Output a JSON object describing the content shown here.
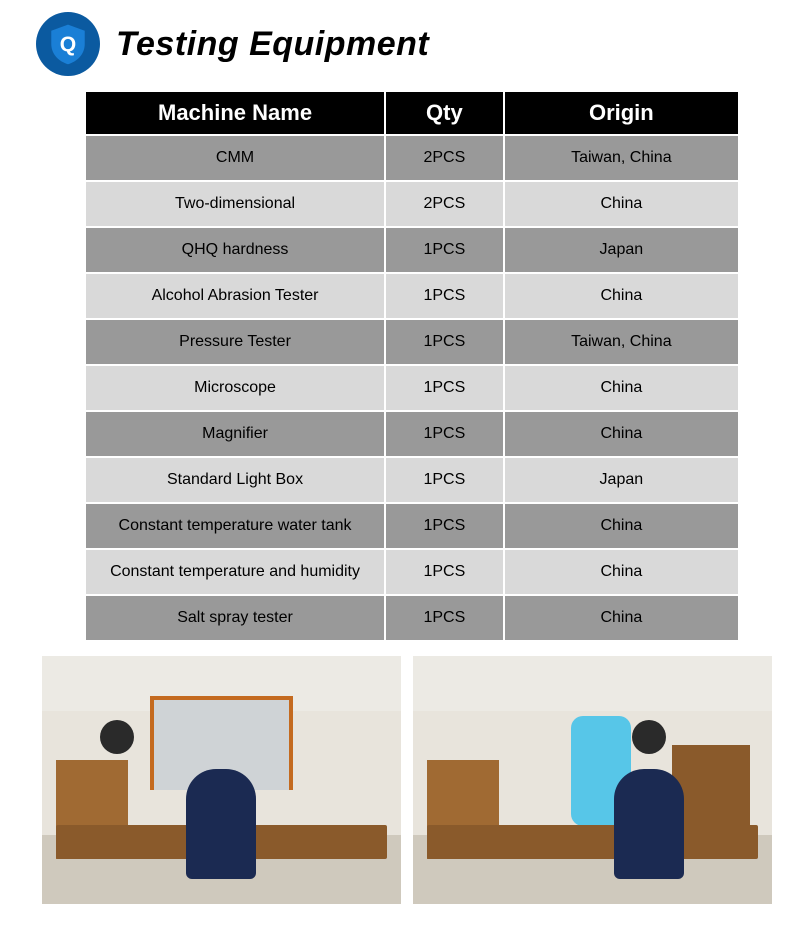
{
  "header": {
    "title": "Testing Equipment",
    "badge_letter": "Q",
    "badge_bg": "#0b5aa0",
    "shield_fill": "#1a7fd6",
    "letter_color": "#ffffff"
  },
  "table": {
    "columns": [
      "Machine Name",
      "Qty",
      "Origin"
    ],
    "column_widths": [
      "46%",
      "18%",
      "36%"
    ],
    "header_bg": "#000000",
    "header_color": "#ffffff",
    "header_fontsize": 22,
    "row_odd_bg": "#999999",
    "row_even_bg": "#d9d9d9",
    "cell_fontsize": 16,
    "rows": [
      {
        "name": "CMM",
        "qty": "2PCS",
        "origin": "Taiwan, China"
      },
      {
        "name": "Two-dimensional",
        "qty": "2PCS",
        "origin": "China"
      },
      {
        "name": "QHQ hardness",
        "qty": "1PCS",
        "origin": "Japan"
      },
      {
        "name": "Alcohol Abrasion Tester",
        "qty": "1PCS",
        "origin": "China"
      },
      {
        "name": "Pressure Tester",
        "qty": "1PCS",
        "origin": "Taiwan, China"
      },
      {
        "name": "Microscope",
        "qty": "1PCS",
        "origin": "China"
      },
      {
        "name": "Magnifier",
        "qty": "1PCS",
        "origin": "China"
      },
      {
        "name": "Standard Light Box",
        "qty": "1PCS",
        "origin": "Japan"
      },
      {
        "name": "Constant temperature water tank",
        "qty": "1PCS",
        "origin": "China"
      },
      {
        "name": "Constant temperature and humidity",
        "qty": "1PCS",
        "origin": "China"
      },
      {
        "name": "Salt spray tester",
        "qty": "1PCS",
        "origin": "China"
      }
    ]
  },
  "photos": {
    "count": 2,
    "captions": [
      "lab-photo-1",
      "lab-photo-2"
    ],
    "colors": {
      "wall": "#e8e4dc",
      "floor": "#cfc9bd",
      "wood": "#8a5a2b",
      "wood_light": "#a06a33",
      "machine_frame": "#c46a1f",
      "machine_body": "#cfd3d6",
      "person_shirt": "#1b2a52",
      "device_blue": "#57c6e8"
    }
  }
}
